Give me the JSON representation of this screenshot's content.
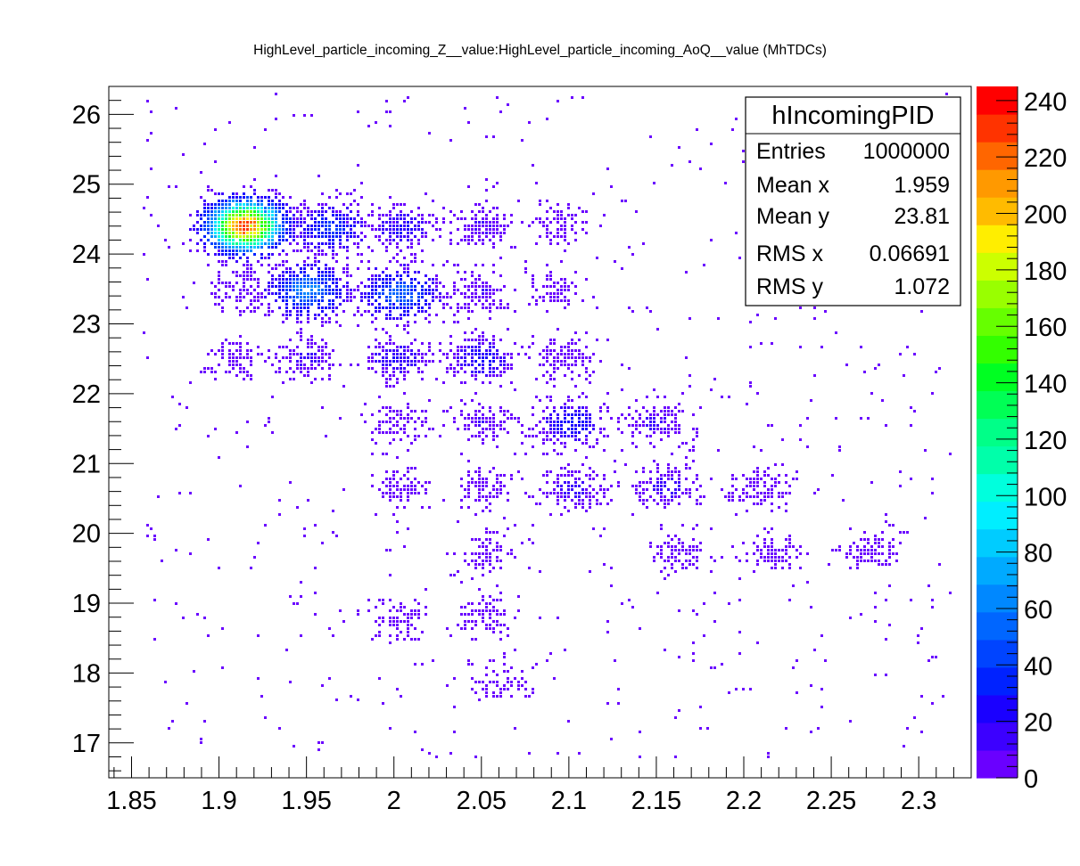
{
  "chart_data": {
    "type": "heatmap",
    "title": "HighLevel_particle_incoming_Z__value:HighLevel_particle_incoming_AoQ__value (MhTDCs)",
    "xlabel": "",
    "ylabel": "",
    "xlim": [
      1.837,
      2.33
    ],
    "ylim": [
      16.5,
      26.4
    ],
    "x_ticks": [
      "1.85",
      "1.9",
      "1.95",
      "2",
      "2.05",
      "2.1",
      "2.15",
      "2.2",
      "2.25",
      "2.3"
    ],
    "y_ticks": [
      "17",
      "18",
      "19",
      "20",
      "21",
      "22",
      "23",
      "24",
      "25",
      "26"
    ],
    "colorbar": {
      "range": [
        0,
        245
      ],
      "ticks": [
        "0",
        "20",
        "40",
        "60",
        "80",
        "100",
        "120",
        "140",
        "160",
        "180",
        "200",
        "220",
        "240"
      ],
      "colors": [
        "#6a00ff",
        "#3c00ff",
        "#1a00ff",
        "#0022ff",
        "#0044ff",
        "#0066ff",
        "#0088ff",
        "#00aaff",
        "#00ccff",
        "#00eeff",
        "#00ffdd",
        "#00ffaa",
        "#00ff88",
        "#00ff55",
        "#00ff22",
        "#33ff00",
        "#66ff00",
        "#99ff00",
        "#ccff00",
        "#ffee00",
        "#ffbb00",
        "#ff9900",
        "#ff6600",
        "#ff3300",
        "#ff0000"
      ]
    },
    "clusters": [
      {
        "x": 1.914,
        "y": 24.42,
        "peak": 240
      },
      {
        "x": 1.963,
        "y": 24.38,
        "peak": 45
      },
      {
        "x": 2.004,
        "y": 24.4,
        "peak": 25
      },
      {
        "x": 2.048,
        "y": 24.4,
        "peak": 12
      },
      {
        "x": 2.093,
        "y": 24.42,
        "peak": 5
      },
      {
        "x": 1.95,
        "y": 23.5,
        "peak": 70
      },
      {
        "x": 2.003,
        "y": 23.45,
        "peak": 60
      },
      {
        "x": 2.048,
        "y": 23.48,
        "peak": 12
      },
      {
        "x": 2.092,
        "y": 23.52,
        "peak": 5
      },
      {
        "x": 1.91,
        "y": 23.48,
        "peak": 8
      },
      {
        "x": 1.95,
        "y": 22.52,
        "peak": 14
      },
      {
        "x": 2.001,
        "y": 22.52,
        "peak": 22
      },
      {
        "x": 2.049,
        "y": 22.52,
        "peak": 28
      },
      {
        "x": 2.098,
        "y": 22.52,
        "peak": 10
      },
      {
        "x": 1.91,
        "y": 22.52,
        "peak": 5
      },
      {
        "x": 2.1,
        "y": 21.58,
        "peak": 32
      },
      {
        "x": 2.15,
        "y": 21.62,
        "peak": 14
      },
      {
        "x": 2.05,
        "y": 21.6,
        "peak": 12
      },
      {
        "x": 2.003,
        "y": 21.6,
        "peak": 6
      },
      {
        "x": 2.102,
        "y": 20.66,
        "peak": 16
      },
      {
        "x": 2.155,
        "y": 20.68,
        "peak": 16
      },
      {
        "x": 2.209,
        "y": 20.66,
        "peak": 10
      },
      {
        "x": 2.05,
        "y": 20.66,
        "peak": 6
      },
      {
        "x": 2.003,
        "y": 20.66,
        "peak": 6
      },
      {
        "x": 2.162,
        "y": 19.73,
        "peak": 6
      },
      {
        "x": 2.216,
        "y": 19.75,
        "peak": 5
      },
      {
        "x": 2.272,
        "y": 19.76,
        "peak": 5
      },
      {
        "x": 2.052,
        "y": 19.72,
        "peak": 4
      },
      {
        "x": 2.003,
        "y": 18.8,
        "peak": 4
      },
      {
        "x": 2.052,
        "y": 18.8,
        "peak": 4
      },
      {
        "x": 2.06,
        "y": 17.88,
        "peak": 3
      }
    ]
  },
  "stats": {
    "name": "hIncomingPID",
    "rows": [
      {
        "label": "Entries",
        "value": "1000000"
      },
      {
        "label": "Mean x",
        "value": "1.959"
      },
      {
        "label": "Mean y",
        "value": "23.81"
      },
      {
        "label": "RMS x",
        "value": "0.06691"
      },
      {
        "label": "RMS y",
        "value": "1.072"
      }
    ]
  }
}
